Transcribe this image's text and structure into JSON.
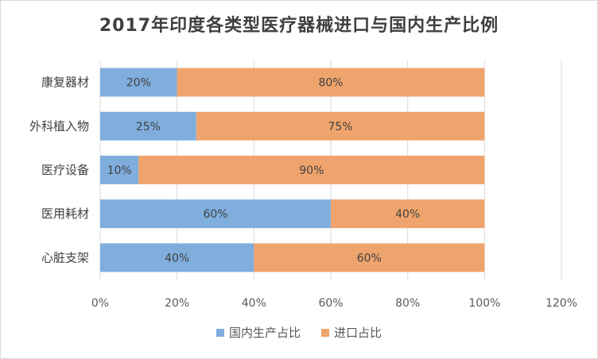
{
  "chart_data": {
    "type": "bar",
    "orientation": "horizontal",
    "stacked": true,
    "title": "2017年印度各类型医疗器械进口与国内生产比例",
    "categories": [
      "康复器材",
      "外科植入物",
      "医疗设备",
      "医用耗材",
      "心脏支架"
    ],
    "series": [
      {
        "name": "国内生产占比",
        "color": "#7faedd",
        "values": [
          20,
          25,
          10,
          60,
          40
        ],
        "labels": [
          "20%",
          "25%",
          "10%",
          "60%",
          "40%"
        ]
      },
      {
        "name": "进口占比",
        "color": "#f0a46d",
        "values": [
          80,
          75,
          90,
          40,
          60
        ],
        "labels": [
          "80%",
          "75%",
          "90%",
          "40%",
          "60%"
        ]
      }
    ],
    "xlim": [
      0,
      120
    ],
    "xticks": [
      "0%",
      "20%",
      "40%",
      "60%",
      "80%",
      "100%",
      "120%"
    ],
    "grid": true,
    "legend_position": "bottom"
  }
}
